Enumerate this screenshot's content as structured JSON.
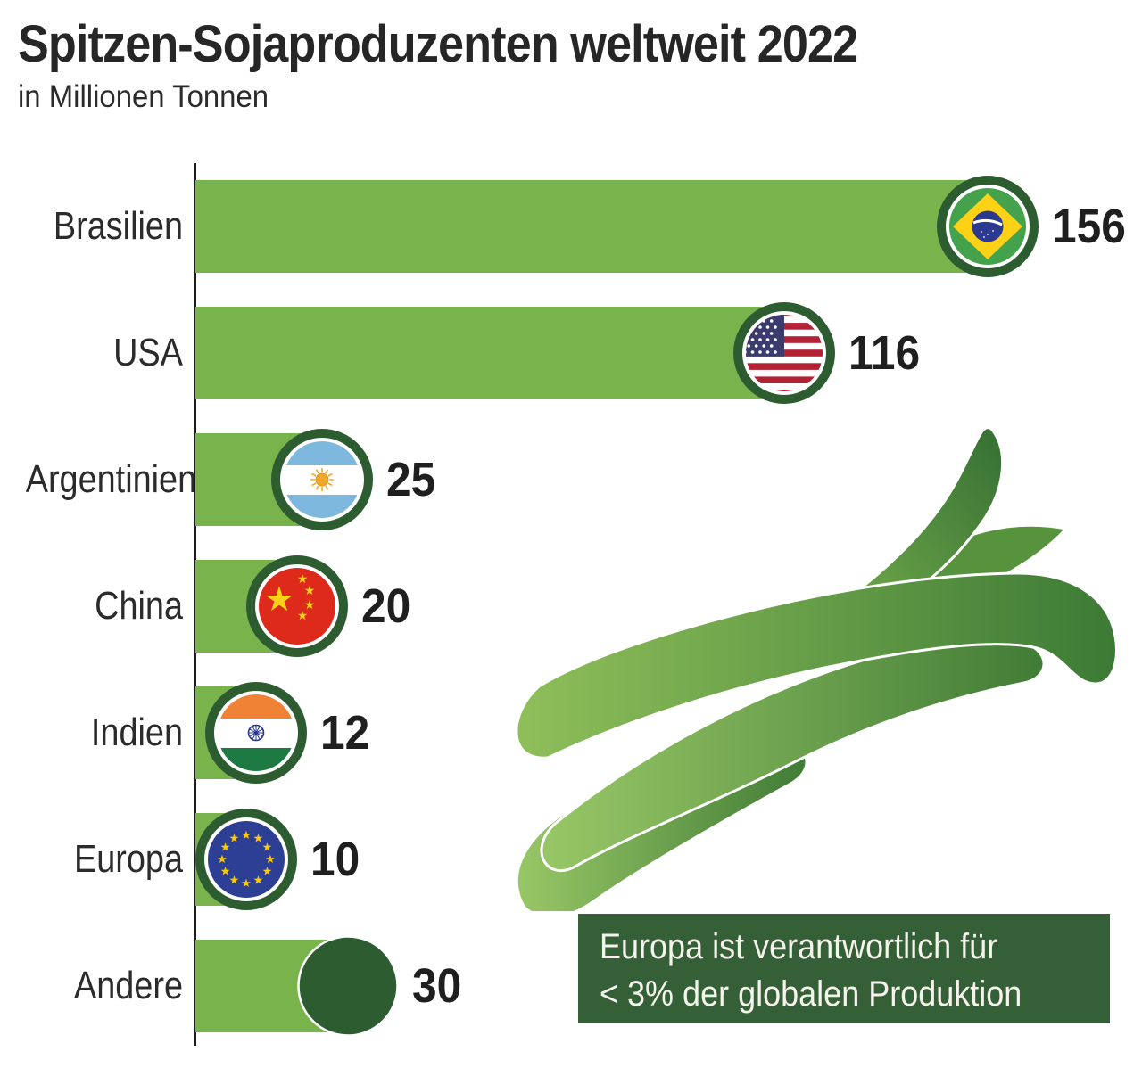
{
  "title": "Spitzen-Sojaproduzenten weltweit 2022",
  "subtitle": "in Millionen Tonnen",
  "annotation": {
    "line1": "Europa ist verantwortlich für",
    "line2": "< 3% der globalen Produktion"
  },
  "colors": {
    "bar": "#79b34c",
    "badge_ring": "#2d5c30",
    "annotation_bg": "#355f36",
    "annotation_text": "#f4f3ec",
    "text": "#262626"
  },
  "chart_data": {
    "type": "bar",
    "orientation": "horizontal",
    "title": "Spitzen-Sojaproduzenten weltweit 2022",
    "unit": "Millionen Tonnen",
    "categories": [
      "Brasilien",
      "USA",
      "Argentinien",
      "China",
      "Indien",
      "Europa",
      "Andere"
    ],
    "values": [
      156,
      116,
      25,
      20,
      12,
      10,
      30
    ],
    "xlim": [
      0,
      160
    ],
    "grid": false,
    "legend": "none",
    "bar_end_icons": [
      "brazil-flag",
      "usa-flag",
      "argentina-flag",
      "china-flag",
      "india-flag",
      "eu-flag",
      "plain-dark-circle"
    ],
    "annotation": "Europa ist verantwortlich für < 3% der globalen Produktion"
  }
}
